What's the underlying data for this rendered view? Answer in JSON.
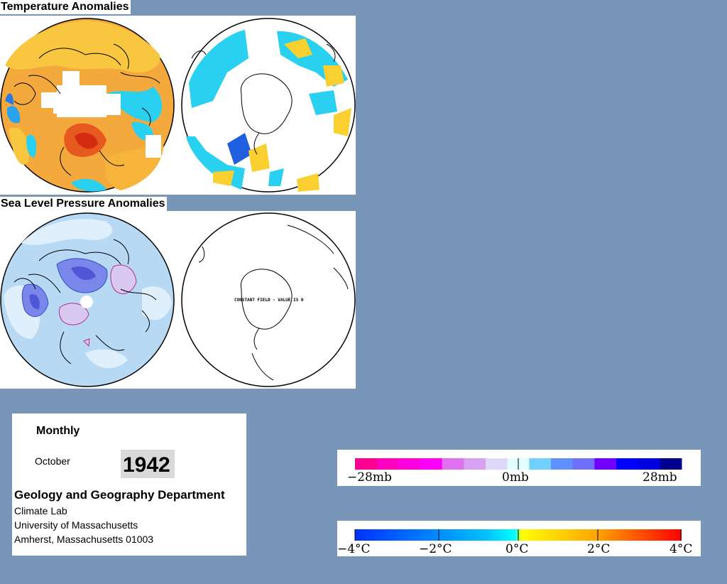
{
  "sections": {
    "temperature_title": "Temperature Anomalies",
    "pressure_title": "Sea Level Pressure Anomalies"
  },
  "maps": {
    "constant_field_label": "CONSTANT FIELD - VALUE IS 0"
  },
  "info": {
    "period": "Monthly",
    "month": "October",
    "year": "1942",
    "department": "Geology and Geography Department",
    "lab": "Climate Lab",
    "university": "University of Massachusetts",
    "address": "Amherst, Massachusetts 01003"
  },
  "pressure_scale": {
    "labels": [
      "−28mb",
      "0mb",
      "28mb"
    ],
    "colors": [
      "#ff0090",
      "#ff00c0",
      "#ff00e0",
      "#ff00ff",
      "#e070f0",
      "#d8a0f0",
      "#e0d8f8",
      "#e0ffff",
      "#70d0ff",
      "#6090ff",
      "#7070ff",
      "#7000ff",
      "#0000ff",
      "#0000e0",
      "#000090"
    ]
  },
  "temperature_scale": {
    "labels": [
      "−4°C",
      "−2°C",
      "0°C",
      "2°C",
      "4°C"
    ],
    "colors": [
      "#0030ff",
      "#00c0ff",
      "#00ffff",
      "#ffff00",
      "#ffa000",
      "#ff0000"
    ]
  },
  "colors": {
    "background": "#7897b8",
    "warm_anomaly": "#f2a02a",
    "cold_anomaly": "#29d0ef",
    "pressure_low": "#b7d9f4",
    "pressure_high": "#d9c8ef"
  }
}
